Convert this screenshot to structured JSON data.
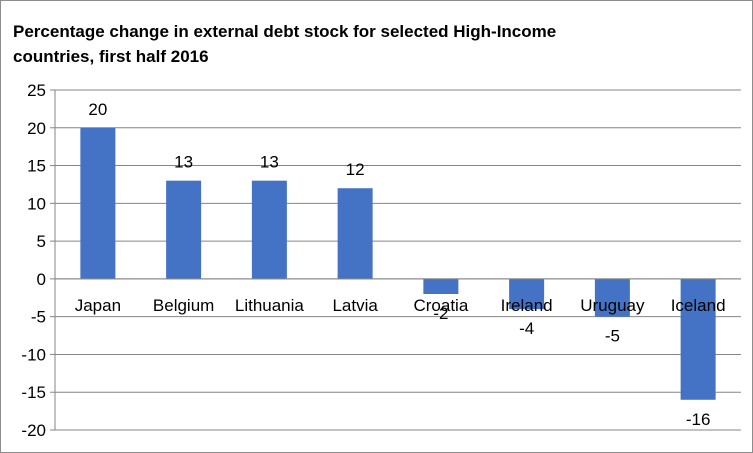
{
  "chart_data": {
    "type": "bar",
    "title": "Percentage change in external debt stock for selected High-Income countries, first half 2016",
    "categories": [
      "Japan",
      "Belgium",
      "Lithuania",
      "Latvia",
      "Croatia",
      "Ireland",
      "Uruguay",
      "Iceland"
    ],
    "values": [
      20,
      13,
      13,
      12,
      -2,
      -4,
      -5,
      -16
    ],
    "data_labels": [
      "20",
      "13",
      "13",
      "12",
      "-2",
      "-4",
      "-5",
      "-16"
    ],
    "ylim": [
      -20,
      25
    ],
    "yticks": [
      25,
      20,
      15,
      10,
      5,
      0,
      -5,
      -10,
      -15,
      -20
    ],
    "ytick_labels": [
      "25",
      "20",
      "15",
      "10",
      "5",
      "0",
      "-5",
      "-10",
      "-15",
      "-20"
    ],
    "xlabel": "",
    "ylabel": "",
    "grid": true,
    "legend": "none",
    "colors": {
      "bar": "#4472c4",
      "grid": "#868686",
      "axis": "#868686"
    }
  }
}
